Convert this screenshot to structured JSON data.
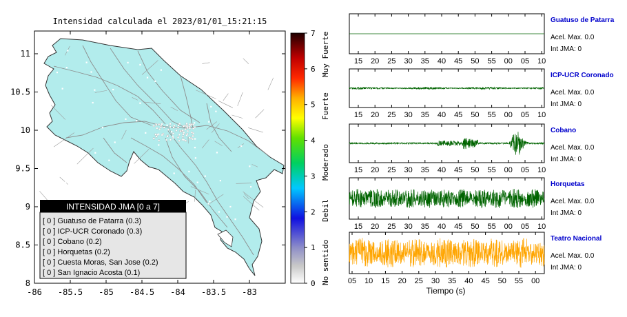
{
  "map": {
    "title": "Intensidad calculada el 2023/01/01_15:21:15",
    "xticks": [
      "-86",
      "-85.5",
      "-85",
      "-84.5",
      "-84",
      "-83.5",
      "-83"
    ],
    "yticks": [
      "11",
      "10.5",
      "10",
      "9.5",
      "9",
      "8.5",
      "8"
    ],
    "land_color": "#b2ecec"
  },
  "colorbar": {
    "ticks": [
      "0",
      "1",
      "2",
      "3",
      "4",
      "5",
      "6",
      "7"
    ],
    "levels": [
      "No sentido",
      "Debil",
      "Moderado",
      "Fuerte",
      "Muy Fuerte"
    ]
  },
  "legend": {
    "title": "INTENSIDAD JMA [0 a 7]",
    "items": [
      "[ 0 ]  Guatuso de Patarra (0.3)",
      "[ 0 ]  ICP-UCR Coronado (0.3)",
      "[ 0 ]  Cobano (0.2)",
      "[ 0 ]  Horquetas (0.2)",
      "[ 0 ]  Cuesta Moras, San Jose (0.2)",
      "[ 0 ]  San Ignacio Acosta (0.1)"
    ]
  },
  "chart_data": {
    "type": "line",
    "xlabel": "Tiempo (s)",
    "series": [
      {
        "name": "Guatuso de Patarra",
        "accel": "Acel. Max. 0.0",
        "jma": "Int JMA: 0",
        "color": "#006400",
        "amp": 0.04,
        "ticks": [
          "15",
          "20",
          "25",
          "30",
          "35",
          "40",
          "45",
          "50",
          "55",
          "00",
          "05",
          "10"
        ]
      },
      {
        "name": "ICP-UCR Coronado",
        "accel": "Acel. Max. 0.0",
        "jma": "Int JMA: 0",
        "color": "#006400",
        "amp": 0.18,
        "ticks": [
          "15",
          "20",
          "25",
          "30",
          "35",
          "40",
          "45",
          "50",
          "55",
          "00",
          "05",
          "10"
        ]
      },
      {
        "name": "Cobano",
        "accel": "Acel. Max. 0.0",
        "jma": "Int JMA: 0",
        "color": "#006400",
        "amp": 0.85,
        "ticks": [
          "15",
          "20",
          "25",
          "30",
          "35",
          "40",
          "45",
          "50",
          "55",
          "00",
          "05",
          "10"
        ]
      },
      {
        "name": "Horquetas",
        "accel": "Acel. Max. 0.0",
        "jma": "Int JMA: 0",
        "color": "#006400",
        "amp": 0.75,
        "ticks": [
          "15",
          "20",
          "25",
          "30",
          "35",
          "40",
          "45",
          "50",
          "55",
          "00",
          "05",
          "10"
        ]
      },
      {
        "name": "Teatro Nacional",
        "accel": "Acel. Max. 0.0",
        "jma": "Int JMA: 0",
        "color": "#ffa500",
        "amp": 0.85,
        "ticks": [
          "05",
          "10",
          "15",
          "20",
          "25",
          "30",
          "35",
          "40",
          "45",
          "50",
          "55",
          "00"
        ]
      }
    ]
  }
}
